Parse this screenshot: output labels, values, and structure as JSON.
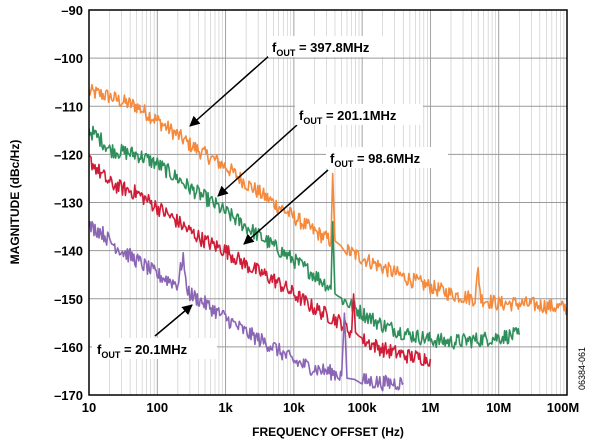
{
  "chart_data": {
    "type": "line",
    "xlabel": "FREQUENCY OFFSET (Hz)",
    "ylabel": "MAGNITUDE (dBc/Hz)",
    "x_scale": "log",
    "xlim": [
      10,
      100000000
    ],
    "ylim": [
      -170,
      -90
    ],
    "grid": true,
    "x_ticks": [
      {
        "value": 10,
        "label": "10"
      },
      {
        "value": 100,
        "label": "100"
      },
      {
        "value": 1000,
        "label": "1k"
      },
      {
        "value": 10000,
        "label": "10k"
      },
      {
        "value": 100000,
        "label": "100k"
      },
      {
        "value": 1000000,
        "label": "1M"
      },
      {
        "value": 10000000,
        "label": "10M"
      },
      {
        "value": 100000000,
        "label": "100M"
      }
    ],
    "y_ticks": [
      {
        "value": -90,
        "label": "–90"
      },
      {
        "value": -100,
        "label": "–100"
      },
      {
        "value": -110,
        "label": "–110"
      },
      {
        "value": -120,
        "label": "–120"
      },
      {
        "value": -130,
        "label": "–130"
      },
      {
        "value": -140,
        "label": "–140"
      },
      {
        "value": -150,
        "label": "–150"
      },
      {
        "value": -160,
        "label": "–160"
      },
      {
        "value": -170,
        "label": "–170"
      }
    ],
    "series": [
      {
        "label": "f_OUT = 397.8MHz",
        "color": "#f58a3c",
        "x": [
          10,
          15,
          20,
          30,
          50,
          100,
          200,
          300,
          500,
          1000,
          2000,
          5000,
          10000,
          20000,
          35000,
          37000,
          40000,
          60000,
          100000,
          200000,
          500000,
          1000000,
          2000000,
          4500000,
          5000000,
          5500000,
          10000000,
          20000000,
          50000000,
          100000000
        ],
        "y": [
          -107,
          -107.5,
          -108,
          -109,
          -110,
          -113,
          -116,
          -118,
          -120,
          -122.5,
          -126,
          -130,
          -133,
          -136,
          -138,
          -124,
          -138,
          -140,
          -141.5,
          -143.5,
          -146,
          -147.5,
          -149,
          -150,
          -144,
          -150,
          -151,
          -151,
          -151.5,
          -152
        ]
      },
      {
        "label": "f_OUT = 201.1MHz",
        "color": "#2e8f5a",
        "x": [
          10,
          15,
          20,
          30,
          50,
          100,
          200,
          300,
          500,
          1000,
          2000,
          5000,
          10000,
          20000,
          30000,
          35000,
          37000,
          40000,
          50000,
          100000,
          200000,
          500000,
          1000000,
          2000000,
          5000000,
          10000000,
          20000000
        ],
        "y": [
          -115,
          -117,
          -119,
          -119.5,
          -120,
          -122,
          -125,
          -127,
          -129,
          -132,
          -135,
          -139,
          -142,
          -145,
          -147,
          -148,
          -134,
          -149,
          -150,
          -153,
          -155.5,
          -157.5,
          -158.5,
          -159,
          -158.5,
          -158,
          -157.5
        ]
      },
      {
        "label": "f_OUT = 98.6MHz",
        "color": "#d01c36",
        "x": [
          10,
          15,
          20,
          30,
          50,
          100,
          200,
          300,
          500,
          1000,
          2000,
          5000,
          10000,
          20000,
          50000,
          70000,
          75000,
          80000,
          100000,
          200000,
          500000,
          1000000
        ],
        "y": [
          -121,
          -124,
          -126,
          -127,
          -128,
          -131,
          -134,
          -136,
          -138,
          -140,
          -143,
          -146,
          -149,
          -152,
          -155,
          -157,
          -149,
          -157,
          -158.5,
          -160.5,
          -162,
          -162.5
        ]
      },
      {
        "label": "f_OUT = 20.1MHz",
        "color": "#8a66b5",
        "x": [
          10,
          15,
          20,
          30,
          50,
          100,
          200,
          240,
          260,
          300,
          500,
          1000,
          2000,
          5000,
          10000,
          20000,
          40000,
          50000,
          55000,
          60000,
          100000,
          200000,
          400000
        ],
        "y": [
          -135,
          -136,
          -138,
          -140,
          -142,
          -145,
          -147,
          -141,
          -147,
          -149,
          -151,
          -154,
          -157,
          -160,
          -163,
          -164.5,
          -165.5,
          -166,
          -153,
          -166.5,
          -167,
          -167.5,
          -167.5
        ]
      }
    ],
    "annotations": [
      {
        "main": "f",
        "sub": "OUT",
        "rest": " = 397.8MHz"
      },
      {
        "main": "f",
        "sub": "OUT",
        "rest": " = 201.1MHz"
      },
      {
        "main": "f",
        "sub": "OUT",
        "rest": " = 98.6MHz"
      },
      {
        "main": "f",
        "sub": "OUT",
        "rest": " = 20.1MHz"
      }
    ],
    "figure_code": "06384-061"
  }
}
